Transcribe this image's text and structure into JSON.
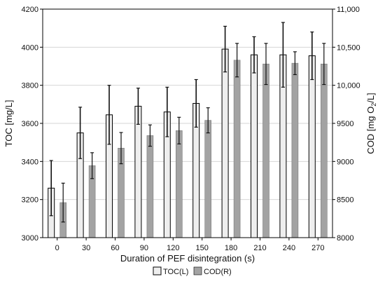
{
  "chart_data": {
    "type": "bar",
    "xlabel": "Duration of PEF disintegration (s)",
    "ylabel_left": "TOC [mg/L]",
    "ylabel_right_prefix": "COD [mg O",
    "ylabel_right_sub": "2",
    "ylabel_right_suffix": "/L]",
    "categories": [
      "0",
      "30",
      "60",
      "90",
      "120",
      "150",
      "180",
      "210",
      "240",
      "270"
    ],
    "y_left": {
      "min": 3000,
      "max": 4200,
      "ticks": [
        3000,
        3200,
        3400,
        3600,
        3800,
        4000,
        4200
      ],
      "tick_labels": [
        "3000",
        "3200",
        "3400",
        "3600",
        "3800",
        "4000",
        "4200"
      ]
    },
    "y_right": {
      "min": 8000,
      "max": 11000,
      "ticks": [
        8000,
        8500,
        9000,
        9500,
        10000,
        10500,
        11000
      ],
      "tick_labels": [
        "8000",
        "8500",
        "9000",
        "9500",
        "10,000",
        "10,500",
        "11,000"
      ]
    },
    "grid": true,
    "legend_position": "bottom-center",
    "series": [
      {
        "name": "TOC(L)",
        "axis": "left",
        "color": "#eeeeee",
        "values": [
          3260,
          3550,
          3645,
          3690,
          3660,
          3705,
          3990,
          3960,
          3960,
          3955
        ],
        "errors": [
          145,
          135,
          155,
          95,
          130,
          125,
          120,
          95,
          170,
          125
        ]
      },
      {
        "name": "COD(R)",
        "axis": "right",
        "color": "#a3a3a3",
        "values": [
          8460,
          8945,
          9175,
          9340,
          9405,
          9540,
          10330,
          10280,
          10290,
          10280
        ],
        "errors": [
          255,
          170,
          205,
          140,
          175,
          165,
          220,
          270,
          150,
          270
        ]
      }
    ]
  }
}
